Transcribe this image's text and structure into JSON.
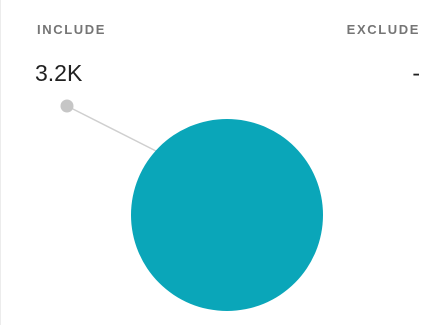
{
  "include": {
    "label": "INCLUDE",
    "value": "3.2K"
  },
  "exclude": {
    "label": "EXCLUDE",
    "value": "-"
  },
  "colors": {
    "circle_fill": "#0aa6b9",
    "connector_dot": "#c6c6c6",
    "connector_line": "#cfcfcf"
  }
}
